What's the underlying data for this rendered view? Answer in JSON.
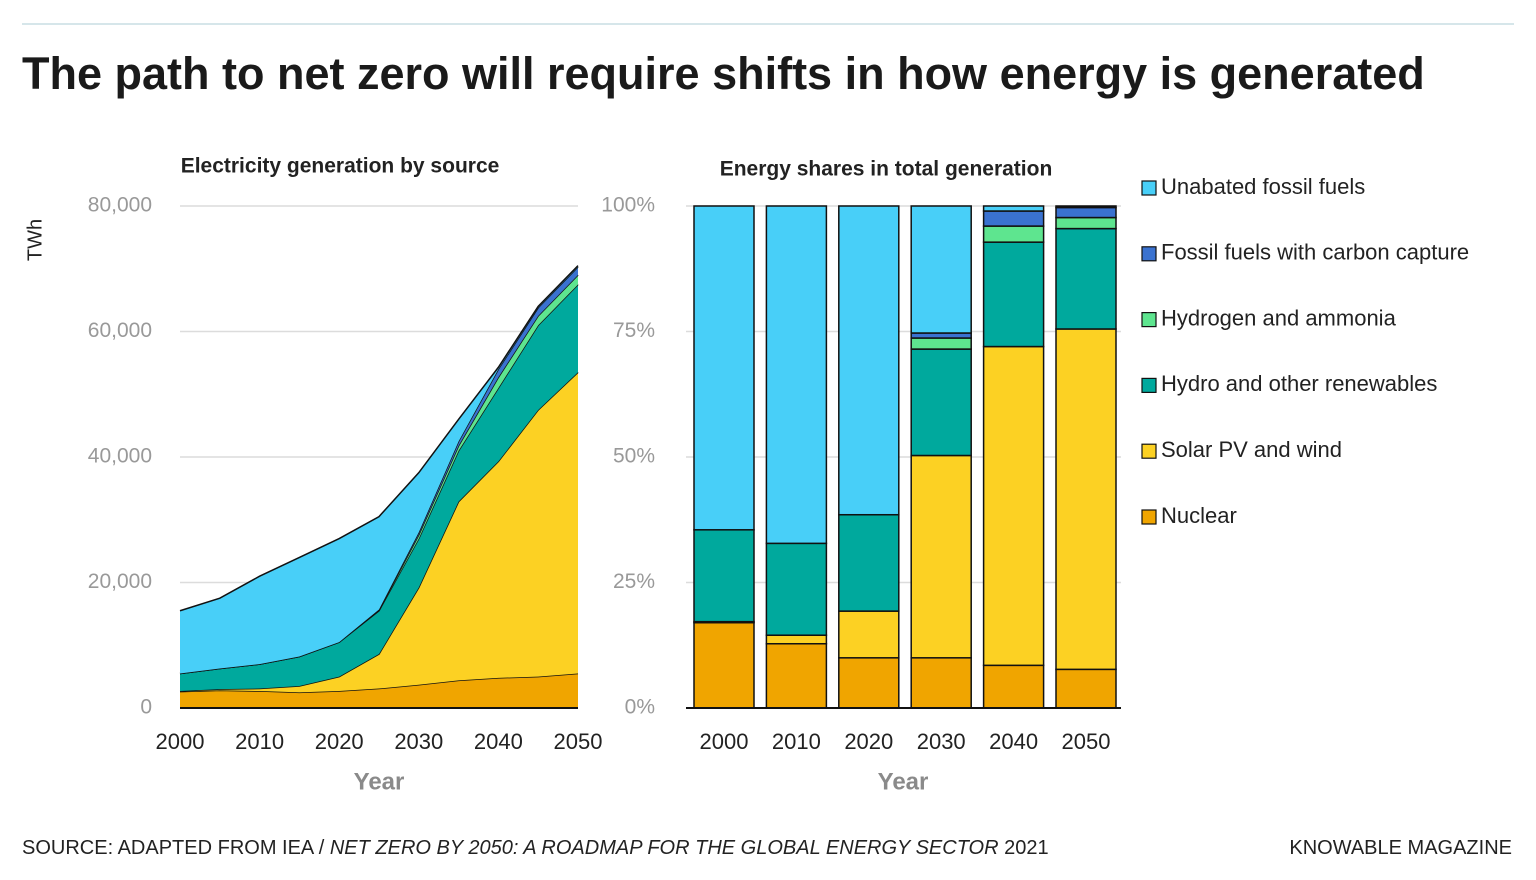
{
  "title": "The path to net zero will require shifts in how energy is generated",
  "source": [
    "SOURCE: ADAPTED FROM IEA / ",
    "NET ZERO BY 2050: A ROADMAP FOR THE GLOBAL ENERGY SECTOR",
    " 2021"
  ],
  "credit": "KNOWABLE MAGAZINE",
  "chart_data": [
    {
      "type": "area",
      "title": "Electricity generation by source",
      "x_label": "Year",
      "y_label": "TWh",
      "x": [
        2000,
        2005,
        2010,
        2015,
        2020,
        2025,
        2030,
        2035,
        2040,
        2045,
        2050
      ],
      "xlim": [
        2000,
        2050
      ],
      "xticks": [
        2000,
        2010,
        2020,
        2030,
        2040,
        2050
      ],
      "ylim": [
        0,
        80000
      ],
      "yticks": [
        0,
        {
          "value": 20000,
          "label": "20,000"
        },
        {
          "value": 40000,
          "label": "40,000"
        },
        {
          "value": 60000,
          "label": "60,000"
        },
        {
          "value": 80000,
          "label": "80,000"
        }
      ],
      "grid": true,
      "stacked": true,
      "series": [
        {
          "name": "Nuclear",
          "color": "#f0a500",
          "values": [
            2600,
            2800,
            2700,
            2500,
            2700,
            3100,
            3700,
            4400,
            4800,
            5000,
            5500
          ]
        },
        {
          "name": "Solar PV and wind",
          "color": "#fcd123",
          "values": [
            100,
            200,
            400,
            1000,
            2300,
            5500,
            15500,
            28500,
            34500,
            42500,
            48000
          ]
        },
        {
          "name": "Hydro and other renewables",
          "color": "#00a99d",
          "values": [
            2800,
            3300,
            3900,
            4700,
            5500,
            6900,
            7800,
            8100,
            11700,
            13500,
            14000
          ]
        },
        {
          "name": "Hydrogen and ammonia",
          "color": "#5ee58f",
          "values": [
            0,
            0,
            0,
            0,
            0,
            100,
            600,
            800,
            1700,
            1500,
            1500
          ]
        },
        {
          "name": "Fossil fuels with carbon capture",
          "color": "#3a72d0",
          "values": [
            0,
            0,
            0,
            0,
            0,
            100,
            400,
            700,
            1300,
            1300,
            1300
          ]
        },
        {
          "name": "Unabated fossil fuels",
          "color": "#48cff8",
          "values": [
            10000,
            11200,
            14000,
            15800,
            16500,
            14800,
            9500,
            3500,
            300,
            200,
            200
          ]
        }
      ]
    },
    {
      "type": "bar",
      "title": "Energy shares in total generation",
      "x_label": "Year",
      "categories": [
        "2000",
        "2010",
        "2020",
        "2030",
        "2040",
        "2050"
      ],
      "ylim": [
        0,
        100
      ],
      "yticks": [
        {
          "value": 0,
          "label": "0%"
        },
        {
          "value": 25,
          "label": "25%"
        },
        {
          "value": 50,
          "label": "50%"
        },
        {
          "value": 75,
          "label": "75%"
        },
        {
          "value": 100,
          "label": "100%"
        }
      ],
      "grid": true,
      "stacked": true,
      "legend": "right",
      "series": [
        {
          "name": "Nuclear",
          "color": "#f0a500",
          "values": [
            17,
            12.8,
            10,
            10,
            8.5,
            7.7
          ]
        },
        {
          "name": "Solar PV and wind",
          "color": "#fcd123",
          "values": [
            0.2,
            1.7,
            9.3,
            40.3,
            63.5,
            67.8
          ]
        },
        {
          "name": "Hydro and other renewables",
          "color": "#00a99d",
          "values": [
            18.3,
            18.3,
            19.2,
            21.2,
            20.8,
            20
          ]
        },
        {
          "name": "Hydrogen and ammonia",
          "color": "#5ee58f",
          "values": [
            0,
            0,
            0,
            2.2,
            3.2,
            2.2
          ]
        },
        {
          "name": "Fossil fuels with carbon capture",
          "color": "#3a72d0",
          "values": [
            0,
            0,
            0,
            1,
            3,
            2
          ]
        },
        {
          "name": "Unabated fossil fuels",
          "color": "#48cff8",
          "values": [
            64.5,
            67.2,
            61.5,
            25.3,
            1,
            0.3
          ]
        }
      ]
    }
  ]
}
